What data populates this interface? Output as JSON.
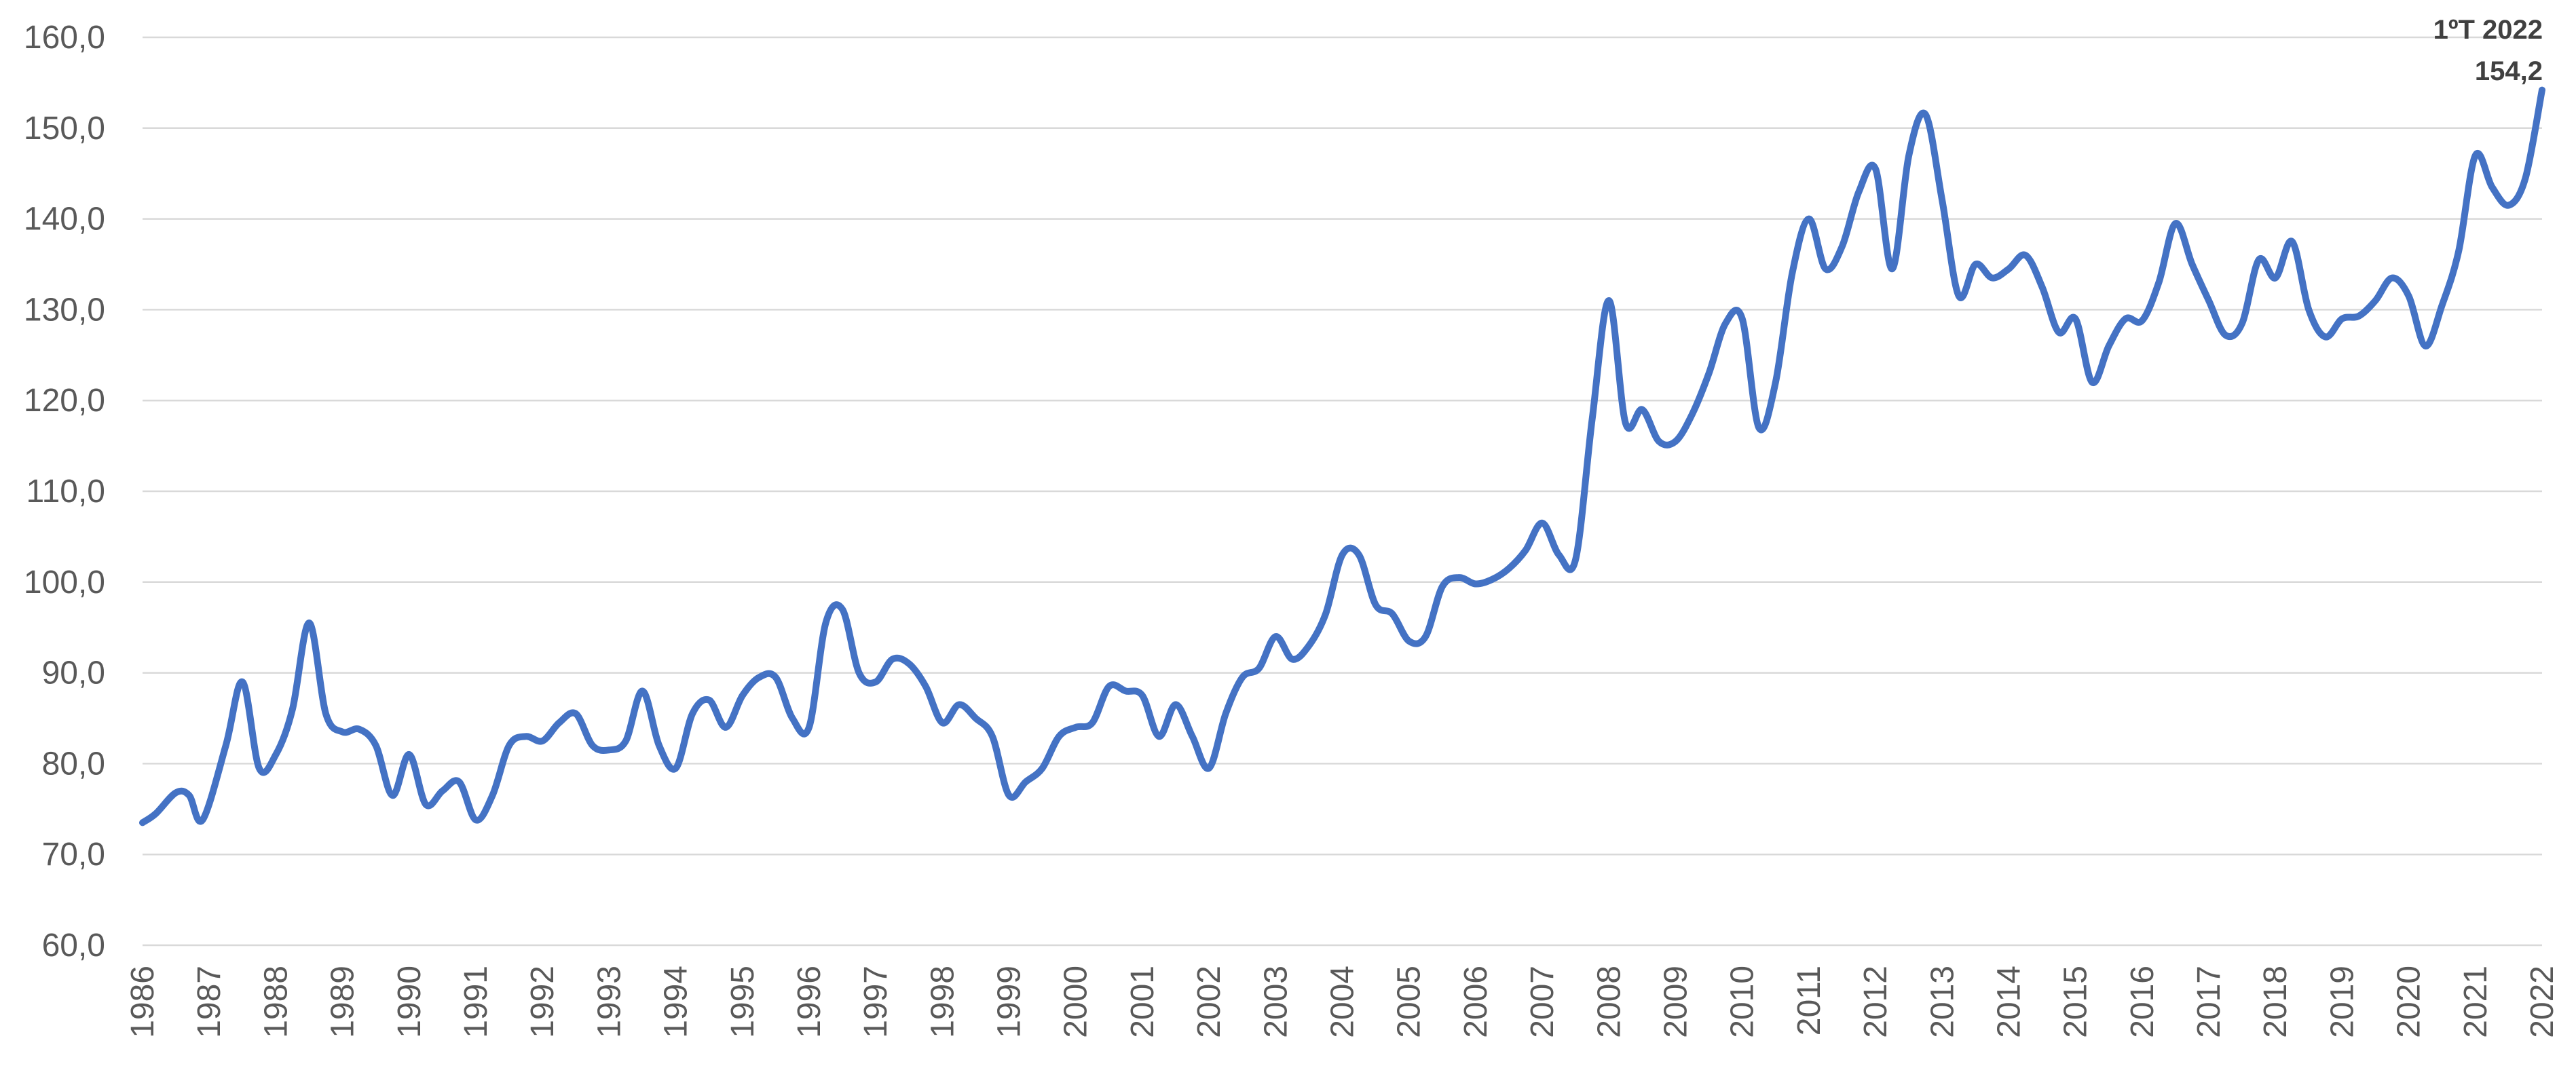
{
  "chart_data": {
    "type": "line",
    "title": "",
    "xlabel": "",
    "ylabel": "",
    "ylim": [
      60,
      160
    ],
    "xlim": [
      1986,
      2022
    ],
    "grid": true,
    "legend": "none",
    "line_color": "#4472c4",
    "y_ticks": [
      60,
      70,
      80,
      90,
      100,
      110,
      120,
      130,
      140,
      150,
      160
    ],
    "y_tick_labels": [
      "60,0",
      "70,0",
      "80,0",
      "90,0",
      "100,0",
      "110,0",
      "120,0",
      "130,0",
      "140,0",
      "150,0",
      "160,0"
    ],
    "x_tick_labels": [
      "1986",
      "1987",
      "1988",
      "1989",
      "1990",
      "1991",
      "1992",
      "1993",
      "1994",
      "1995",
      "1996",
      "1997",
      "1998",
      "1999",
      "2000",
      "2001",
      "2002",
      "2003",
      "2004",
      "2005",
      "2006",
      "2007",
      "2008",
      "2009",
      "2010",
      "2011",
      "2012",
      "2013",
      "2014",
      "2015",
      "2016",
      "2017",
      "2018",
      "2019",
      "2020",
      "2021",
      "2022"
    ],
    "series": [
      {
        "points": [
          [
            1986.0,
            73.5
          ],
          [
            1986.2,
            74.5
          ],
          [
            1986.5,
            76.8
          ],
          [
            1986.7,
            76.5
          ],
          [
            1986.9,
            73.8
          ],
          [
            1987.25,
            82.0
          ],
          [
            1987.5,
            89.0
          ],
          [
            1987.75,
            79.5
          ],
          [
            1988.0,
            81.0
          ],
          [
            1988.25,
            86.0
          ],
          [
            1988.5,
            95.5
          ],
          [
            1988.75,
            85.5
          ],
          [
            1989.0,
            83.5
          ],
          [
            1989.25,
            83.8
          ],
          [
            1989.5,
            82.0
          ],
          [
            1989.75,
            76.5
          ],
          [
            1990.0,
            81.0
          ],
          [
            1990.25,
            75.5
          ],
          [
            1990.5,
            77.0
          ],
          [
            1990.75,
            78.0
          ],
          [
            1991.0,
            73.8
          ],
          [
            1991.25,
            76.5
          ],
          [
            1991.5,
            82.0
          ],
          [
            1991.75,
            83.0
          ],
          [
            1992.0,
            82.5
          ],
          [
            1992.25,
            84.5
          ],
          [
            1992.5,
            85.5
          ],
          [
            1992.75,
            82.0
          ],
          [
            1993.0,
            81.5
          ],
          [
            1993.25,
            82.5
          ],
          [
            1993.5,
            88.0
          ],
          [
            1993.75,
            82.0
          ],
          [
            1994.0,
            79.5
          ],
          [
            1994.25,
            85.5
          ],
          [
            1994.5,
            87.0
          ],
          [
            1994.75,
            84.0
          ],
          [
            1995.0,
            87.5
          ],
          [
            1995.25,
            89.5
          ],
          [
            1995.5,
            89.5
          ],
          [
            1995.75,
            85.0
          ],
          [
            1996.0,
            84.0
          ],
          [
            1996.25,
            95.5
          ],
          [
            1996.5,
            97.0
          ],
          [
            1996.75,
            90.0
          ],
          [
            1997.0,
            89.0
          ],
          [
            1997.25,
            91.5
          ],
          [
            1997.5,
            91.0
          ],
          [
            1997.75,
            88.5
          ],
          [
            1998.0,
            84.5
          ],
          [
            1998.25,
            86.5
          ],
          [
            1998.5,
            85.0
          ],
          [
            1998.75,
            83.0
          ],
          [
            1999.0,
            76.5
          ],
          [
            1999.25,
            78.0
          ],
          [
            1999.5,
            79.5
          ],
          [
            1999.75,
            83.0
          ],
          [
            2000.0,
            84.0
          ],
          [
            2000.25,
            84.5
          ],
          [
            2000.5,
            88.5
          ],
          [
            2000.75,
            88.0
          ],
          [
            2001.0,
            87.5
          ],
          [
            2001.25,
            83.0
          ],
          [
            2001.5,
            86.5
          ],
          [
            2001.75,
            83.0
          ],
          [
            2002.0,
            79.5
          ],
          [
            2002.25,
            85.5
          ],
          [
            2002.5,
            89.5
          ],
          [
            2002.75,
            90.5
          ],
          [
            2003.0,
            94.0
          ],
          [
            2003.25,
            91.5
          ],
          [
            2003.5,
            93.0
          ],
          [
            2003.75,
            96.5
          ],
          [
            2004.0,
            103.0
          ],
          [
            2004.25,
            103.0
          ],
          [
            2004.5,
            97.5
          ],
          [
            2004.75,
            96.5
          ],
          [
            2005.0,
            93.5
          ],
          [
            2005.25,
            94.0
          ],
          [
            2005.5,
            99.5
          ],
          [
            2005.75,
            100.5
          ],
          [
            2006.0,
            99.8
          ],
          [
            2006.25,
            100.3
          ],
          [
            2006.5,
            101.5
          ],
          [
            2006.75,
            103.5
          ],
          [
            2007.0,
            106.5
          ],
          [
            2007.25,
            103.0
          ],
          [
            2007.5,
            102.5
          ],
          [
            2007.75,
            118.0
          ],
          [
            2008.0,
            131.0
          ],
          [
            2008.25,
            117.5
          ],
          [
            2008.5,
            119.0
          ],
          [
            2008.75,
            115.5
          ],
          [
            2009.0,
            115.5
          ],
          [
            2009.25,
            118.5
          ],
          [
            2009.5,
            123.0
          ],
          [
            2009.75,
            128.5
          ],
          [
            2010.0,
            129.0
          ],
          [
            2010.25,
            117.0
          ],
          [
            2010.5,
            122.0
          ],
          [
            2010.75,
            134.0
          ],
          [
            2011.0,
            140.0
          ],
          [
            2011.25,
            134.5
          ],
          [
            2011.5,
            137.0
          ],
          [
            2011.75,
            143.0
          ],
          [
            2012.0,
            145.5
          ],
          [
            2012.25,
            134.5
          ],
          [
            2012.5,
            147.0
          ],
          [
            2012.75,
            151.5
          ],
          [
            2013.0,
            142.0
          ],
          [
            2013.25,
            131.5
          ],
          [
            2013.5,
            135.0
          ],
          [
            2013.75,
            133.5
          ],
          [
            2014.0,
            134.5
          ],
          [
            2014.25,
            136.0
          ],
          [
            2014.5,
            132.5
          ],
          [
            2014.75,
            127.5
          ],
          [
            2015.0,
            129.0
          ],
          [
            2015.25,
            122.0
          ],
          [
            2015.5,
            126.0
          ],
          [
            2015.75,
            129.0
          ],
          [
            2016.0,
            128.8
          ],
          [
            2016.25,
            133.0
          ],
          [
            2016.5,
            139.5
          ],
          [
            2016.75,
            135.0
          ],
          [
            2017.0,
            131.0
          ],
          [
            2017.25,
            127.2
          ],
          [
            2017.5,
            128.5
          ],
          [
            2017.75,
            135.5
          ],
          [
            2018.0,
            133.5
          ],
          [
            2018.25,
            137.5
          ],
          [
            2018.5,
            130.0
          ],
          [
            2018.75,
            127.0
          ],
          [
            2019.0,
            129.0
          ],
          [
            2019.25,
            129.3
          ],
          [
            2019.5,
            131.0
          ],
          [
            2019.75,
            133.5
          ],
          [
            2020.0,
            131.5
          ],
          [
            2020.25,
            126.0
          ],
          [
            2020.5,
            130.5
          ],
          [
            2020.75,
            136.5
          ],
          [
            2021.0,
            147.0
          ],
          [
            2021.25,
            143.5
          ],
          [
            2021.5,
            141.5
          ],
          [
            2021.75,
            144.5
          ],
          [
            2022.0,
            154.2
          ]
        ]
      }
    ],
    "annotations": [
      {
        "x": 2022.0,
        "y": 154.2,
        "lines": [
          "1ºT 2022",
          "154,2"
        ]
      }
    ]
  }
}
